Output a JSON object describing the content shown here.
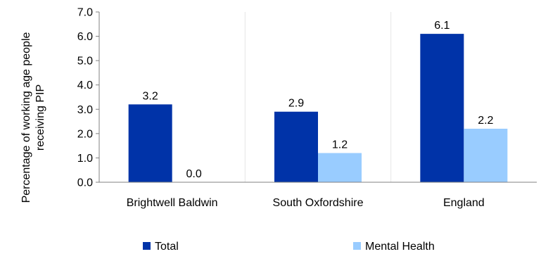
{
  "chart_data": {
    "type": "bar",
    "title": "",
    "xlabel": "",
    "ylabel": "Percentage of working age people receiving PIP",
    "ylabel_lines": [
      "Percentage of working age people",
      "receiving PIP"
    ],
    "categories": [
      "Brightwell Baldwin",
      "South Oxfordshire",
      "England"
    ],
    "series": [
      {
        "name": "Total",
        "values": [
          3.2,
          2.9,
          6.1
        ],
        "labels": [
          "3.2",
          "2.9",
          "6.1"
        ],
        "color": "#0033a8"
      },
      {
        "name": "Mental Health",
        "values": [
          0.0,
          1.2,
          2.2
        ],
        "labels": [
          "0.0",
          "1.2",
          "2.2"
        ],
        "color": "#99ccff"
      }
    ],
    "ylim": [
      0,
      7
    ],
    "yticks": [
      0,
      1,
      2,
      3,
      4,
      5,
      6,
      7
    ],
    "ytick_labels": [
      "0.0",
      "1.0",
      "2.0",
      "3.0",
      "4.0",
      "5.0",
      "6.0",
      "7.0"
    ],
    "grid": "vertical category separators",
    "legend_position": "bottom"
  }
}
